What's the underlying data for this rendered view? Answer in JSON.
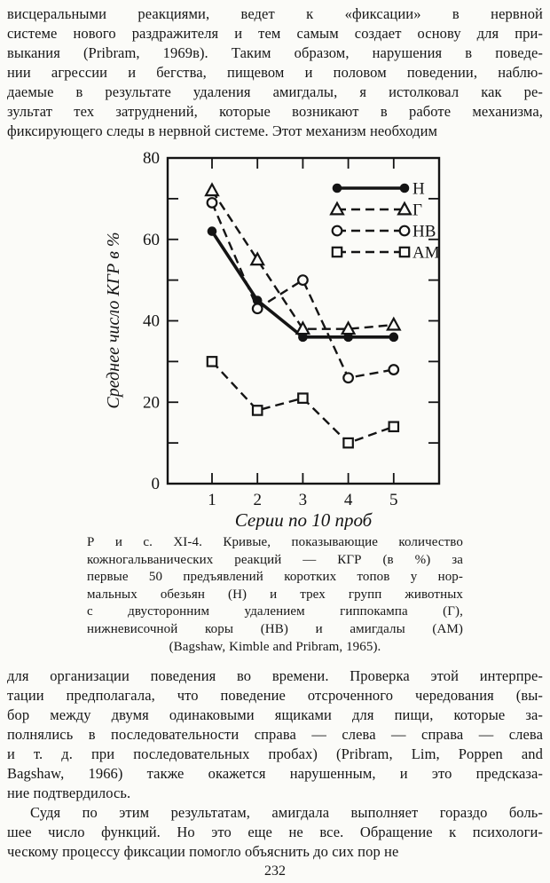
{
  "page": {
    "number": "232",
    "top_paragraph": {
      "lines": [
        "висцеральными реакциями, ведет к «фиксации» в нервной",
        "системе нового раздражителя и тем самым создает основу для при-",
        "выкания (Pribram, 1969в). Таким образом, нарушения в поведе-",
        "нии агрессии и бегства, пищевом и половом поведении, наблю-",
        "даемые в результате удаления амигдалы, я истолковал как ре-",
        "зультат тех затруднений, которые возникают в работе механизма,",
        "фиксирующего следы в нервной системе. Этот механизм необходим"
      ]
    },
    "figure": {
      "caption": {
        "lines": [
          "Р и с. XI-4. Кривые, показывающие количество",
          "кожногальванических реакций — КГР (в %) за",
          "первые 50 предъявлений коротких топов у нор-",
          "мальных обезьян (Н) и трех групп животных",
          "с двусторонним удалением гиппокампа (Г),",
          "нижневисочной коры (НВ) и амигдалы (АМ)",
          "(Bagshaw, Kimble and Pribram, 1965)."
        ]
      }
    },
    "bottom_paragraph_1": {
      "lines": [
        "для организации поведения во времени. Проверка этой интерпре-",
        "тации предполагала, что поведение отсроченного чередования (вы-",
        "бор между двумя одинаковыми ящиками для пищи, которые за-",
        "полнялись в последовательности справа — слева — справа — слева",
        "и т. д. при последовательных пробах) (Pribram, Lim, Poppen and",
        "Bagshaw, 1966) также окажется нарушенным, и это предсказа-",
        "ние подтвердилось."
      ]
    },
    "bottom_paragraph_2": {
      "lines": [
        "Судя по этим результатам, амигдала выполняет гораздо боль-",
        "шее число функций. Но это еще не все. Обращение к психологи-",
        "ческому процессу фиксации помогло объяснить до сих пор не"
      ]
    }
  },
  "chart_data": {
    "type": "line",
    "title": "",
    "xlabel": "Серии по 10 проб",
    "ylabel": "Среднее число КГР в %",
    "categories": [
      "1",
      "2",
      "3",
      "4",
      "5"
    ],
    "ylim": [
      0,
      80
    ],
    "yticks_major": [
      0,
      20,
      40,
      60,
      80
    ],
    "yticks_minor": [
      10,
      30,
      50,
      70
    ],
    "grid": false,
    "legend_position": "top-right",
    "ink_color": "#141414",
    "paper_color": "#fbfbf8",
    "series": [
      {
        "name": "Н",
        "marker": "circle-filled",
        "line": "solid",
        "values": [
          62,
          45,
          36,
          36,
          36
        ]
      },
      {
        "name": "Г",
        "marker": "triangle-open",
        "line": "dashed",
        "values": [
          72,
          55,
          38,
          38,
          39
        ]
      },
      {
        "name": "НВ",
        "marker": "circle-open",
        "line": "dashed",
        "values": [
          69,
          43,
          50,
          26,
          28
        ]
      },
      {
        "name": "АМ",
        "marker": "square-open",
        "line": "dashed",
        "values": [
          30,
          18,
          21,
          10,
          14
        ]
      }
    ]
  }
}
